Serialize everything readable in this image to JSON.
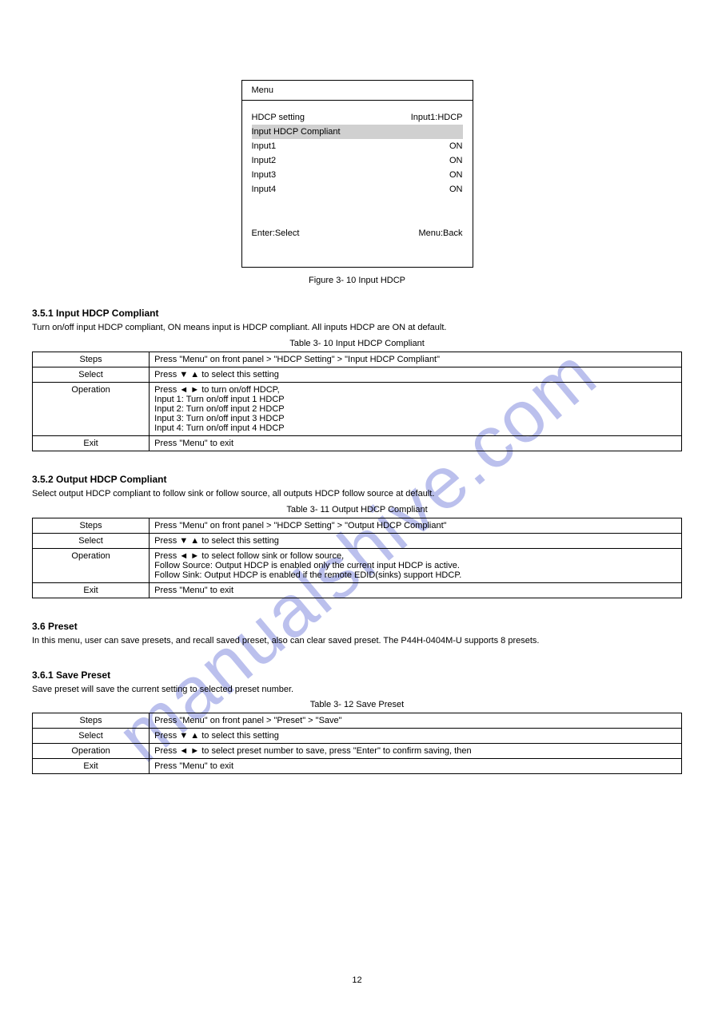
{
  "menu": {
    "header": "Menu",
    "rows": [
      {
        "label": "HDCP setting",
        "value": "Input1:HDCP"
      },
      {
        "label": "Input HDCP Compliant",
        "value": ""
      },
      {
        "label": "Input1",
        "value": "ON"
      },
      {
        "label": "Input2",
        "value": "ON"
      },
      {
        "label": "Input3",
        "value": "ON"
      },
      {
        "label": "Input4",
        "value": "ON"
      }
    ],
    "selected_index": 1,
    "selected_bg": "#d0d0d0",
    "help": {
      "left": "Enter:Select",
      "right": "Menu:Back"
    },
    "caption": "Figure 3- 10 Input HDCP"
  },
  "section1": {
    "title": "3.5.1 Input HDCP Compliant",
    "desc": "Turn on/off input HDCP compliant, ON means input is HDCP compliant. All inputs HDCP are ON at default.",
    "table_title": "Table 3- 10 Input HDCP Compliant",
    "rows": [
      {
        "label": "Steps",
        "value": "Press \"Menu\" on front panel > \"HDCP Setting\" > \"Input HDCP Compliant\""
      },
      {
        "label": "Select",
        "value": "Press [tri_dn] [tri_up] to select this setting"
      },
      {
        "label": "Operation",
        "value": "Press [tri_l] [tri_r] to turn on/off HDCP,\nInput 1: Turn on/off input 1 HDCP\nInput 2: Turn on/off input 2 HDCP\nInput 3: Turn on/off input 3 HDCP\nInput 4: Turn on/off input 4 HDCP"
      },
      {
        "label": "Exit",
        "value": "Press \"Menu\" to exit"
      }
    ]
  },
  "section2": {
    "title": "3.5.2 Output HDCP Compliant",
    "desc": "Select output HDCP compliant to follow sink or follow source, all outputs HDCP follow source at default.",
    "table_title": "Table 3- 11 Output HDCP Compliant",
    "rows": [
      {
        "label": "Steps",
        "value": "Press \"Menu\" on front panel > \"HDCP Setting\" > \"Output HDCP Compliant\""
      },
      {
        "label": "Select",
        "value": "Press [tri_dn] [tri_up] to select this setting"
      },
      {
        "label": "Operation",
        "value": "Press [tri_l] [tri_r] to select follow sink or follow source,\nFollow Source: Output HDCP is enabled only the current input HDCP is active.\nFollow Sink: Output HDCP is enabled if the remote EDID(sinks) support HDCP."
      },
      {
        "label": "Exit",
        "value": "Press \"Menu\" to exit"
      }
    ]
  },
  "section3": {
    "title": "3.6 Preset",
    "desc": "In this menu, user can save presets, and recall saved preset, also can clear saved preset. The P44H-0404M-U supports 8 presets.",
    "sub_title": "3.6.1 Save Preset",
    "sub_desc": "Save preset will save the current setting to selected preset number.",
    "table_title": "Table 3- 12 Save Preset",
    "rows": [
      {
        "label": "Steps",
        "value": "Press \"Menu\" on front panel > \"Preset\" > \"Save\""
      },
      {
        "label": "Select",
        "value": "Press [tri_dn] [tri_up] to select this setting"
      },
      {
        "label": "Operation",
        "value": "Press [tri_l] [tri_r] to select preset number to save, press \"Enter\" to confirm saving, then"
      },
      {
        "label": "Exit",
        "value": "Press \"Menu\" to exit"
      }
    ]
  },
  "page": "12",
  "tri": {
    "up": "▲",
    "down": "▼",
    "left": "◄",
    "right": "►"
  }
}
